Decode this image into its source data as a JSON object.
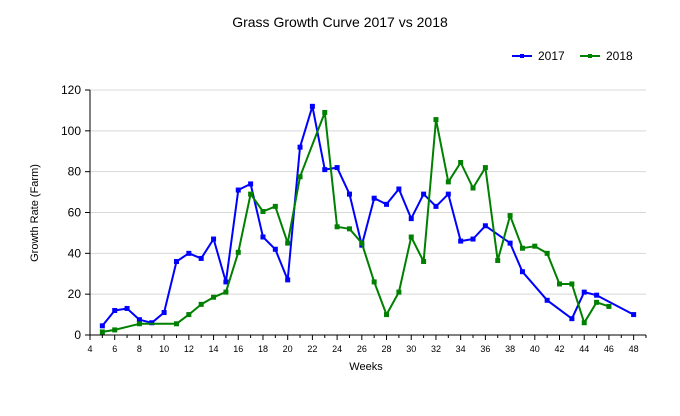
{
  "chart_data": {
    "type": "line",
    "title": "Grass Growth Curve 2017 vs 2018",
    "xlabel": "Weeks",
    "ylabel": "Growth Rate (Farm)",
    "xlim": [
      4,
      49
    ],
    "ylim": [
      0,
      120
    ],
    "x_ticks": [
      4,
      6,
      8,
      10,
      12,
      14,
      16,
      18,
      20,
      22,
      24,
      26,
      28,
      30,
      32,
      34,
      36,
      38,
      40,
      42,
      44,
      46,
      48
    ],
    "y_ticks": [
      0,
      20,
      40,
      60,
      80,
      100,
      120
    ],
    "grid": "horizontal",
    "legend_position": "top-right",
    "series": [
      {
        "name": "2017",
        "color": "#0000ff",
        "marker": "square",
        "x": [
          5,
          6,
          7,
          8,
          9,
          10,
          11,
          12,
          13,
          14,
          15,
          16,
          17,
          18,
          19,
          20,
          21,
          22,
          23,
          24,
          25,
          26,
          27,
          28,
          29,
          30,
          31,
          32,
          33,
          34,
          35,
          36,
          38,
          39,
          41,
          43,
          44,
          45,
          48
        ],
        "y": [
          4.5,
          12,
          13,
          7.5,
          6,
          11,
          36,
          40,
          37.5,
          47,
          26,
          71,
          74,
          48,
          42,
          27,
          92,
          112,
          81,
          82,
          69,
          44,
          67,
          64,
          71.5,
          57,
          69,
          63,
          69,
          46,
          47,
          53.5,
          45,
          31,
          17,
          8,
          21,
          19.5,
          10
        ]
      },
      {
        "name": "2018",
        "color": "#008000",
        "marker": "square",
        "x": [
          5,
          6,
          8,
          11,
          12,
          13,
          14,
          15,
          16,
          17,
          18,
          19,
          20,
          21,
          23,
          24,
          25,
          26,
          27,
          28,
          29,
          30,
          31,
          32,
          33,
          34,
          35,
          36,
          37,
          38,
          39,
          40,
          41,
          42,
          43,
          44,
          45,
          46
        ],
        "y": [
          1.5,
          2.5,
          5.5,
          5.5,
          10,
          15,
          18.5,
          21,
          40.5,
          69,
          60.5,
          63,
          45,
          77.5,
          109,
          53,
          52,
          45,
          26,
          10,
          21,
          48,
          36,
          105.5,
          75,
          84.5,
          72,
          82,
          36.5,
          58.5,
          42.5,
          43.5,
          40,
          25,
          25,
          6,
          16,
          14
        ]
      }
    ]
  }
}
